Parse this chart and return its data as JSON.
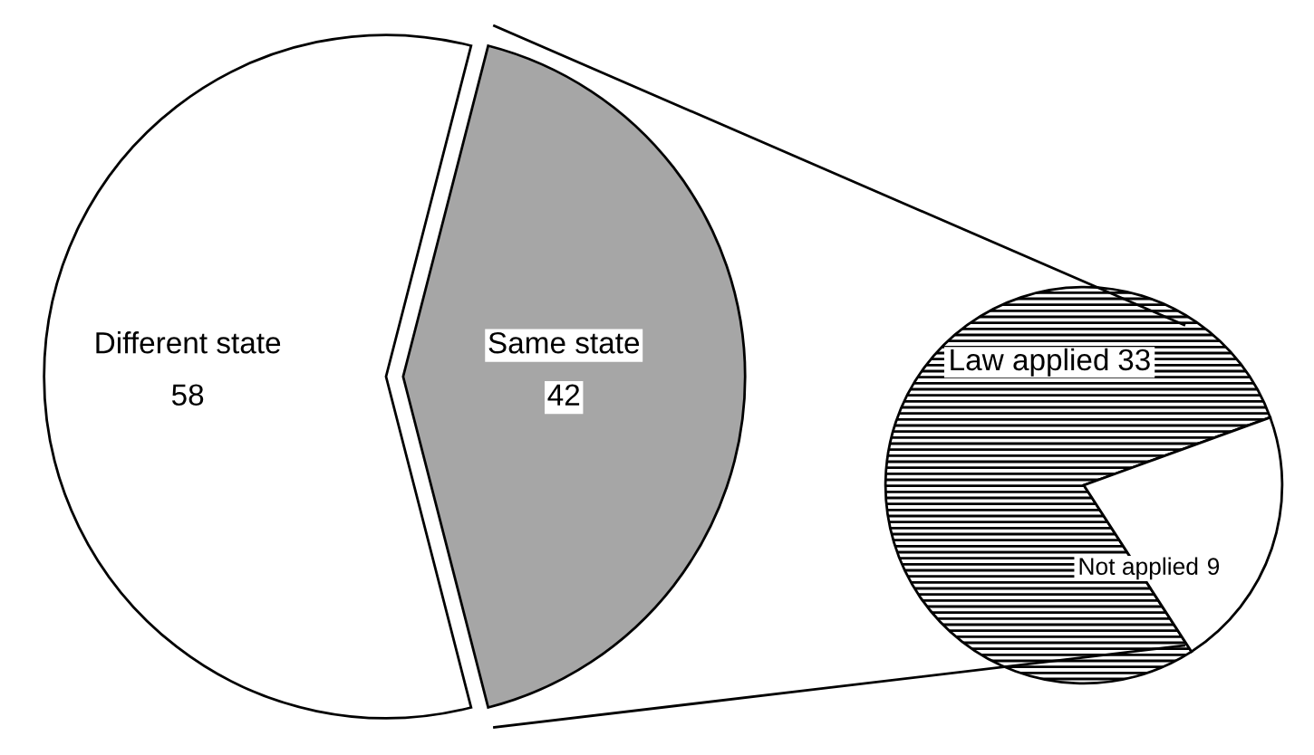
{
  "chart_data": [
    {
      "type": "pie",
      "categories": [
        "Different state",
        "Same state"
      ],
      "values": [
        58,
        42
      ],
      "colors": [
        "#ffffff",
        "#a6a6a6"
      ],
      "data_labels": true
    },
    {
      "type": "pie",
      "categories": [
        "Law applied",
        "Not applied"
      ],
      "values": [
        33,
        9
      ],
      "colors": [
        "#000000",
        "#ffffff"
      ],
      "data_labels": true
    }
  ]
}
